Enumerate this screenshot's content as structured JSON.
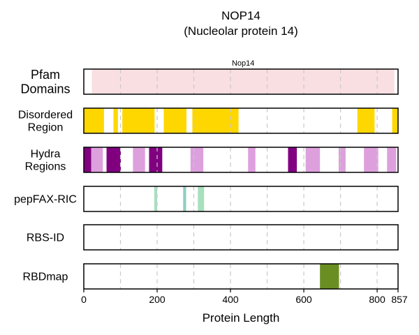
{
  "chart_data": {
    "type": "bar",
    "title": "NOP14",
    "subtitle": "(Nucleolar protein 14)",
    "xlabel": "Protein Length",
    "xlim": [
      0,
      857
    ],
    "xticks": [
      0,
      200,
      400,
      600,
      800,
      857
    ],
    "grid_x": [
      100,
      200,
      300,
      400,
      500,
      600,
      700,
      800
    ],
    "rows": [
      {
        "label_lines": [
          "Pfam",
          "Domains"
        ],
        "segments": [
          {
            "start": 22,
            "end": 847,
            "color": "#f9dfe1",
            "label": "Nop14"
          }
        ]
      },
      {
        "label_lines": [
          "Disordered",
          "Region"
        ],
        "segments": [
          {
            "start": 0,
            "end": 55,
            "color": "#ffd700"
          },
          {
            "start": 81,
            "end": 93,
            "color": "#ffd700"
          },
          {
            "start": 105,
            "end": 193,
            "color": "#ffd700"
          },
          {
            "start": 218,
            "end": 280,
            "color": "#ffd700"
          },
          {
            "start": 296,
            "end": 422,
            "color": "#ffd700"
          },
          {
            "start": 746,
            "end": 793,
            "color": "#ffd700"
          },
          {
            "start": 841,
            "end": 857,
            "color": "#ffd700"
          }
        ]
      },
      {
        "label_lines": [
          "Hydra",
          "Regions"
        ],
        "segments": [
          {
            "start": 0,
            "end": 20,
            "color": "#800080"
          },
          {
            "start": 20,
            "end": 52,
            "color": "#dda0dd"
          },
          {
            "start": 62,
            "end": 101,
            "color": "#800080"
          },
          {
            "start": 134,
            "end": 167,
            "color": "#dda0dd"
          },
          {
            "start": 178,
            "end": 214,
            "color": "#800080"
          },
          {
            "start": 291,
            "end": 326,
            "color": "#dda0dd"
          },
          {
            "start": 448,
            "end": 468,
            "color": "#dda0dd"
          },
          {
            "start": 557,
            "end": 581,
            "color": "#800080"
          },
          {
            "start": 605,
            "end": 644,
            "color": "#dda0dd"
          },
          {
            "start": 695,
            "end": 714,
            "color": "#dda0dd"
          },
          {
            "start": 764,
            "end": 803,
            "color": "#dda0dd"
          },
          {
            "start": 827,
            "end": 852,
            "color": "#dda0dd"
          }
        ]
      },
      {
        "label_lines": [
          "pepFAX-RIC"
        ],
        "segments": [
          {
            "start": 192,
            "end": 200,
            "color": "#a8dfbe"
          },
          {
            "start": 271,
            "end": 279,
            "color": "#8ccfc0"
          },
          {
            "start": 311,
            "end": 328,
            "color": "#a8dfbe"
          }
        ]
      },
      {
        "label_lines": [
          "RBS-ID"
        ],
        "segments": []
      },
      {
        "label_lines": [
          "RBDmap"
        ],
        "segments": [
          {
            "start": 644,
            "end": 696,
            "color": "#6b8e23"
          }
        ]
      }
    ]
  }
}
